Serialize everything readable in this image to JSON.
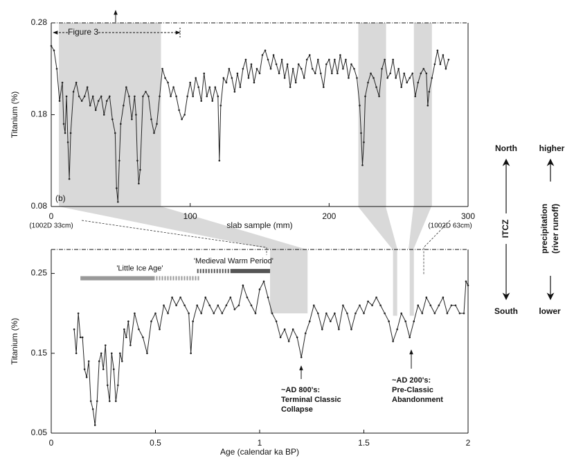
{
  "chart_data": [
    {
      "type": "line",
      "ylabel": "Titanium (%)",
      "xlabel": "slab sample (mm)",
      "xlim": [
        0,
        300
      ],
      "ylim": [
        0.08,
        0.28
      ],
      "xticks": [
        0,
        100,
        200,
        300
      ],
      "yticks": [
        0.08,
        0.18,
        0.28
      ],
      "color": "#222222",
      "shade_color": "#d9d9d9",
      "shaded_regions": [
        {
          "x": [
            5.5,
            79
          ]
        },
        {
          "x": [
            221,
            241
          ]
        },
        {
          "x": [
            261,
            274
          ]
        }
      ],
      "panel_label": "(b)",
      "figure_note": "Figure 3",
      "left_note": "(1002D 33cm)",
      "right_note": "(1002D 63cm)",
      "x": [
        0,
        2,
        4,
        6,
        8,
        9,
        10,
        11,
        12,
        13,
        14,
        16,
        18,
        20,
        22,
        24,
        26,
        28,
        30,
        32,
        34,
        36,
        38,
        40,
        42,
        44,
        46,
        47,
        48,
        49,
        50,
        52,
        54,
        56,
        58,
        60,
        61,
        62,
        63,
        64,
        66,
        68,
        70,
        72,
        74,
        76,
        78,
        80,
        82,
        84,
        86,
        88,
        90,
        92,
        94,
        96,
        98,
        100,
        102,
        104,
        106,
        108,
        110,
        112,
        114,
        116,
        118,
        120,
        121,
        122,
        124,
        126,
        128,
        130,
        132,
        134,
        136,
        138,
        140,
        142,
        144,
        146,
        148,
        150,
        152,
        154,
        156,
        158,
        160,
        162,
        164,
        166,
        168,
        170,
        172,
        174,
        176,
        178,
        180,
        182,
        184,
        186,
        188,
        190,
        192,
        194,
        196,
        198,
        200,
        202,
        204,
        206,
        208,
        210,
        212,
        214,
        216,
        218,
        220,
        222,
        223,
        224,
        225,
        226,
        228,
        230,
        232,
        234,
        236,
        238,
        240,
        242,
        244,
        246,
        248,
        250,
        252,
        254,
        256,
        258,
        260,
        262,
        264,
        266,
        268,
        270,
        271,
        272,
        274,
        276,
        278,
        280,
        282,
        284,
        286
      ],
      "values": [
        0.255,
        0.25,
        0.23,
        0.195,
        0.215,
        0.17,
        0.16,
        0.2,
        0.15,
        0.11,
        0.16,
        0.205,
        0.215,
        0.2,
        0.195,
        0.2,
        0.21,
        0.19,
        0.2,
        0.185,
        0.195,
        0.2,
        0.18,
        0.195,
        0.2,
        0.175,
        0.16,
        0.1,
        0.085,
        0.13,
        0.17,
        0.19,
        0.21,
        0.2,
        0.175,
        0.2,
        0.18,
        0.13,
        0.105,
        0.12,
        0.2,
        0.205,
        0.2,
        0.175,
        0.16,
        0.17,
        0.2,
        0.23,
        0.22,
        0.215,
        0.2,
        0.21,
        0.2,
        0.185,
        0.175,
        0.18,
        0.2,
        0.215,
        0.2,
        0.22,
        0.21,
        0.195,
        0.225,
        0.2,
        0.21,
        0.195,
        0.21,
        0.2,
        0.13,
        0.19,
        0.22,
        0.215,
        0.23,
        0.22,
        0.205,
        0.225,
        0.21,
        0.23,
        0.24,
        0.22,
        0.235,
        0.215,
        0.23,
        0.225,
        0.245,
        0.25,
        0.24,
        0.23,
        0.245,
        0.235,
        0.225,
        0.24,
        0.22,
        0.235,
        0.21,
        0.23,
        0.215,
        0.235,
        0.23,
        0.22,
        0.24,
        0.245,
        0.23,
        0.225,
        0.24,
        0.225,
        0.21,
        0.235,
        0.24,
        0.225,
        0.24,
        0.225,
        0.245,
        0.23,
        0.24,
        0.22,
        0.235,
        0.23,
        0.22,
        0.19,
        0.16,
        0.125,
        0.15,
        0.2,
        0.215,
        0.225,
        0.22,
        0.21,
        0.2,
        0.23,
        0.24,
        0.22,
        0.225,
        0.24,
        0.22,
        0.23,
        0.21,
        0.225,
        0.215,
        0.22,
        0.225,
        0.2,
        0.215,
        0.225,
        0.23,
        0.225,
        0.19,
        0.205,
        0.22,
        0.235,
        0.25,
        0.235,
        0.245,
        0.23,
        0.24
      ]
    },
    {
      "type": "line",
      "ylabel": "Titanium (%)",
      "xlabel": "Age (calendar ka BP)",
      "xlim": [
        0,
        2
      ],
      "ylim": [
        0.05,
        0.28
      ],
      "xticks": [
        0,
        0.5,
        1,
        1.5,
        2
      ],
      "yticks": [
        0.05,
        0.15,
        0.25
      ],
      "color": "#222222",
      "shade_color": "#d9d9d9",
      "shaded_regions": [
        {
          "x": [
            1.05,
            1.23
          ],
          "ymin": 0.2
        },
        {
          "x": [
            1.64,
            1.66
          ],
          "ymin": 0.197
        },
        {
          "x": [
            1.72,
            1.74
          ],
          "ymin": 0.197
        }
      ],
      "periods": [
        {
          "label": "'Little Ice Age'",
          "y": 0.244,
          "color": "#999999",
          "solid": [
            0.14,
            0.49
          ],
          "dashed": [
            0.49,
            0.71
          ]
        },
        {
          "label": "'Medieval Warm Period'",
          "y": 0.253,
          "color": "#555555",
          "dashed": [
            0.7,
            0.86
          ],
          "solid": [
            0.86,
            1.05
          ]
        }
      ],
      "annotations": [
        [
          "~AD 800's:",
          "Terminal Classic",
          "Collapse"
        ],
        [
          "~AD 200's:",
          "Pre-Classic",
          "Abandonment"
        ]
      ],
      "x": [
        0.11,
        0.12,
        0.13,
        0.14,
        0.15,
        0.16,
        0.17,
        0.18,
        0.19,
        0.2,
        0.21,
        0.22,
        0.23,
        0.24,
        0.25,
        0.26,
        0.27,
        0.28,
        0.29,
        0.3,
        0.31,
        0.32,
        0.33,
        0.34,
        0.35,
        0.36,
        0.37,
        0.38,
        0.4,
        0.42,
        0.44,
        0.46,
        0.48,
        0.5,
        0.52,
        0.54,
        0.56,
        0.58,
        0.6,
        0.62,
        0.64,
        0.66,
        0.67,
        0.68,
        0.7,
        0.72,
        0.74,
        0.76,
        0.78,
        0.8,
        0.82,
        0.84,
        0.86,
        0.88,
        0.9,
        0.92,
        0.94,
        0.96,
        0.98,
        1.0,
        1.02,
        1.04,
        1.06,
        1.08,
        1.1,
        1.12,
        1.14,
        1.16,
        1.18,
        1.2,
        1.22,
        1.24,
        1.26,
        1.28,
        1.3,
        1.32,
        1.34,
        1.36,
        1.38,
        1.4,
        1.42,
        1.44,
        1.46,
        1.48,
        1.5,
        1.52,
        1.54,
        1.56,
        1.58,
        1.6,
        1.62,
        1.64,
        1.66,
        1.68,
        1.7,
        1.72,
        1.74,
        1.76,
        1.78,
        1.8,
        1.82,
        1.84,
        1.86,
        1.88,
        1.9,
        1.92,
        1.94,
        1.96,
        1.98,
        1.99,
        2.0
      ],
      "values": [
        0.18,
        0.15,
        0.2,
        0.17,
        0.17,
        0.13,
        0.12,
        0.14,
        0.09,
        0.08,
        0.06,
        0.09,
        0.14,
        0.15,
        0.13,
        0.16,
        0.11,
        0.09,
        0.15,
        0.13,
        0.09,
        0.11,
        0.15,
        0.14,
        0.18,
        0.17,
        0.19,
        0.16,
        0.2,
        0.18,
        0.17,
        0.15,
        0.19,
        0.2,
        0.18,
        0.21,
        0.2,
        0.22,
        0.21,
        0.22,
        0.21,
        0.2,
        0.15,
        0.19,
        0.21,
        0.2,
        0.22,
        0.21,
        0.2,
        0.21,
        0.2,
        0.21,
        0.22,
        0.205,
        0.21,
        0.235,
        0.22,
        0.21,
        0.2,
        0.23,
        0.24,
        0.22,
        0.2,
        0.19,
        0.17,
        0.18,
        0.165,
        0.18,
        0.17,
        0.145,
        0.175,
        0.19,
        0.21,
        0.2,
        0.18,
        0.2,
        0.19,
        0.2,
        0.18,
        0.21,
        0.2,
        0.18,
        0.2,
        0.21,
        0.2,
        0.215,
        0.21,
        0.22,
        0.21,
        0.2,
        0.19,
        0.165,
        0.18,
        0.2,
        0.19,
        0.17,
        0.19,
        0.21,
        0.2,
        0.22,
        0.21,
        0.2,
        0.21,
        0.22,
        0.2,
        0.21,
        0.21,
        0.2,
        0.2,
        0.24,
        0.235
      ]
    }
  ],
  "side_panel": {
    "north": "North",
    "south": "South",
    "itcz": "ITCZ",
    "higher": "higher",
    "lower": "lower",
    "precipitation": "precipitation",
    "runoff": "(river runoff)"
  }
}
